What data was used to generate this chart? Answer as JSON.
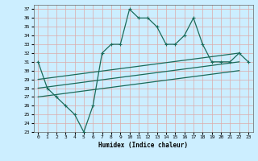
{
  "xlabel": "Humidex (Indice chaleur)",
  "bg_color": "#cceeff",
  "grid_color": "#ddaaaa",
  "line_color": "#1a6b5a",
  "xlim": [
    -0.5,
    23.5
  ],
  "ylim": [
    23,
    37.5
  ],
  "xticks": [
    0,
    1,
    2,
    3,
    4,
    5,
    6,
    7,
    8,
    9,
    10,
    11,
    12,
    13,
    14,
    15,
    16,
    17,
    18,
    19,
    20,
    21,
    22,
    23
  ],
  "yticks": [
    23,
    24,
    25,
    26,
    27,
    28,
    29,
    30,
    31,
    32,
    33,
    34,
    35,
    36,
    37
  ],
  "line1_x": [
    0,
    1,
    2,
    3,
    4,
    5,
    6,
    7,
    8,
    9,
    10,
    11,
    12,
    13,
    14,
    15,
    16,
    17,
    18,
    19,
    20,
    21,
    22,
    23
  ],
  "line1_y": [
    31,
    28,
    27,
    26,
    25,
    23,
    26,
    32,
    33,
    33,
    37,
    36,
    36,
    35,
    33,
    33,
    34,
    36,
    33,
    31,
    31,
    31,
    32,
    31
  ],
  "line2_x": [
    0,
    22
  ],
  "line2_y": [
    29.0,
    32.0
  ],
  "line3_x": [
    0,
    22
  ],
  "line3_y": [
    28.0,
    31.0
  ],
  "line4_x": [
    0,
    22
  ],
  "line4_y": [
    27.0,
    30.0
  ]
}
